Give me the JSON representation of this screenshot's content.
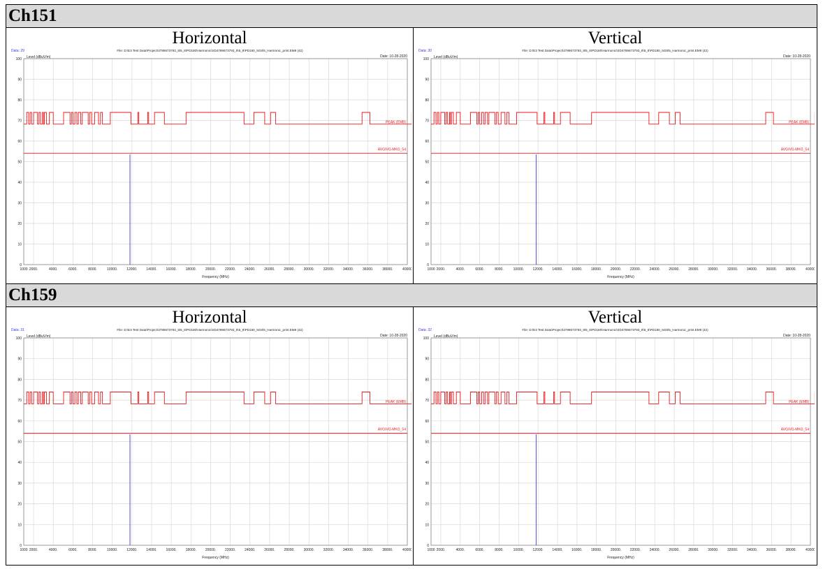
{
  "rows": [
    {
      "channel": "Ch151",
      "panels": [
        {
          "polarization": "Horizontal",
          "data_no": "Data: 29"
        },
        {
          "polarization": "Vertical",
          "data_no": "Data: 30"
        }
      ]
    },
    {
      "channel": "Ch159",
      "panels": [
        {
          "polarization": "Horizontal",
          "data_no": "Data: 31"
        },
        {
          "polarization": "Vertical",
          "data_no": "Data: 32"
        }
      ]
    }
  ],
  "plot_header": {
    "file": "File: D:\\E3 Test Data\\Project\\4789673793_8\\5_8\\PD180\\Harmonic\\SD4789673793_8\\5_8\\PD180_5G8\\5_Harmonic_print.EM8 (42)",
    "date": "Date: 10-28-2020",
    "ylabel": "Level (dBuV/m)",
    "xlabel": "Frequency (MHz)"
  },
  "chart_data": {
    "type": "line",
    "colors": {
      "limit": "#e8161b",
      "measurement": "#3a3ad6",
      "grid": "#d8d8d8"
    },
    "xlim": [
      1000,
      40000
    ],
    "ylim": [
      0,
      100
    ],
    "x_ticks": [
      "1000",
      "2000.",
      "4000.",
      "6000.",
      "8000.",
      "10000.",
      "12000.",
      "14000.",
      "16000.",
      "18000.",
      "20000.",
      "22000.",
      "24000.",
      "26000.",
      "28000.",
      "30000.",
      "32000.",
      "34000.",
      "36000.",
      "38000.",
      "40000"
    ],
    "y_ticks": [
      "0",
      "10",
      "20",
      "30",
      "40",
      "50",
      "60",
      "70",
      "80",
      "90",
      "100"
    ],
    "series": [
      {
        "name": "PEAK (EMB)",
        "levels": [
          68.2,
          73.9
        ],
        "high_segments": [
          [
            1300,
            1500
          ],
          [
            1650,
            1800
          ],
          [
            2000,
            2400
          ],
          [
            2550,
            2700
          ],
          [
            2900,
            3000
          ],
          [
            3100,
            3300
          ],
          [
            3600,
            4000
          ],
          [
            5050,
            5700
          ],
          [
            5850,
            6000
          ],
          [
            6200,
            6400
          ],
          [
            6550,
            6800
          ],
          [
            6950,
            7550
          ],
          [
            7700,
            7900
          ],
          [
            8200,
            8600
          ],
          [
            8800,
            9000
          ],
          [
            9800,
            11900
          ],
          [
            12600,
            12700
          ],
          [
            13600,
            13700
          ],
          [
            14300,
            15300
          ],
          [
            17500,
            23400
          ],
          [
            24400,
            25500
          ],
          [
            26100,
            26600
          ],
          [
            35400,
            36200
          ],
          [
            40450,
            40450
          ]
        ]
      },
      {
        "name": "AVG/VG-MKG_54",
        "value": 54
      }
    ],
    "spikes": [
      11800
    ]
  }
}
